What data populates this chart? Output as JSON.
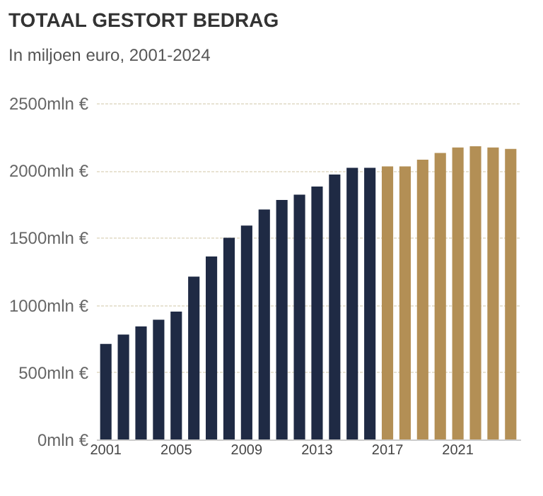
{
  "chart_data": {
    "type": "bar",
    "title": "TOTAAL GESTORT BEDRAG",
    "subtitle": "In miljoen euro, 2001-2024",
    "categories": [
      "2001",
      null,
      null,
      null,
      "2005",
      null,
      null,
      null,
      "2009",
      null,
      null,
      null,
      "2013",
      null,
      null,
      null,
      "2017",
      null,
      null,
      null,
      "2021",
      null,
      null,
      null
    ],
    "values": [
      710,
      780,
      840,
      890,
      950,
      1210,
      1360,
      1500,
      1590,
      1710,
      1780,
      1820,
      1880,
      1970,
      2020,
      2020,
      2030,
      2030,
      2080,
      2130,
      2170,
      2180,
      2170,
      2160
    ],
    "colors": [
      "#1f2a44",
      "#1f2a44",
      "#1f2a44",
      "#1f2a44",
      "#1f2a44",
      "#1f2a44",
      "#1f2a44",
      "#1f2a44",
      "#1f2a44",
      "#1f2a44",
      "#1f2a44",
      "#1f2a44",
      "#1f2a44",
      "#1f2a44",
      "#1f2a44",
      "#1f2a44",
      "#b38f55",
      "#b38f55",
      "#b38f55",
      "#b38f55",
      "#b38f55",
      "#b38f55",
      "#b38f55",
      "#b38f55"
    ],
    "ylim": [
      0,
      2500
    ],
    "yticks": [
      {
        "value": 0,
        "label": "0mln €"
      },
      {
        "value": 500,
        "label": "500mln €"
      },
      {
        "value": 1000,
        "label": "1000mln €"
      },
      {
        "value": 1500,
        "label": "1500mln €"
      },
      {
        "value": 2000,
        "label": "2000mln €"
      },
      {
        "value": 2500,
        "label": "2500mln €"
      }
    ],
    "grid": "y"
  }
}
